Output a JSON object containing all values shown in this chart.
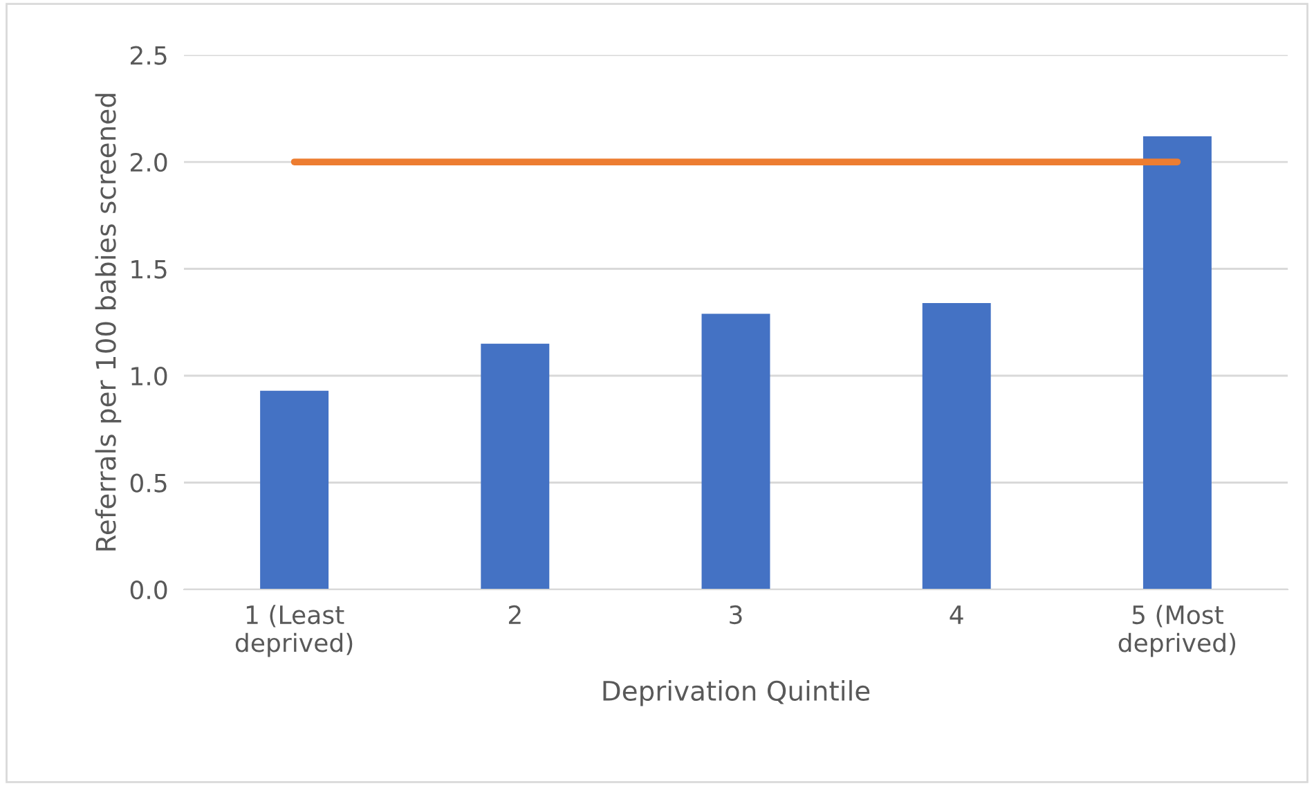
{
  "chart_data": {
    "type": "bar",
    "xlabel": "Deprivation Quintile",
    "ylabel": "Referrals per 100 babies screened",
    "categories": [
      "1 (Least\ndeprived)",
      "2",
      "3",
      "4",
      "5 (Most\ndeprived)"
    ],
    "series": [
      {
        "color": "#4472c4",
        "values": [
          0.93,
          1.15,
          1.29,
          1.34,
          2.12
        ]
      },
      {
        "type": "line",
        "color": "#ed7d31",
        "values": [
          2.0,
          2.0,
          2.0,
          2.0,
          2.0
        ]
      }
    ],
    "ylim": [
      0,
      2.5
    ],
    "yticks": [
      {
        "value": 0,
        "label": "0.0"
      },
      {
        "value": 0.5,
        "label": "0.5"
      },
      {
        "value": 1,
        "label": "1.0"
      },
      {
        "value": 1.5,
        "label": "1.5"
      },
      {
        "value": 2,
        "label": "2.0"
      },
      {
        "value": 2.5,
        "label": "2.5"
      }
    ],
    "grid": "y",
    "legend": false
  }
}
